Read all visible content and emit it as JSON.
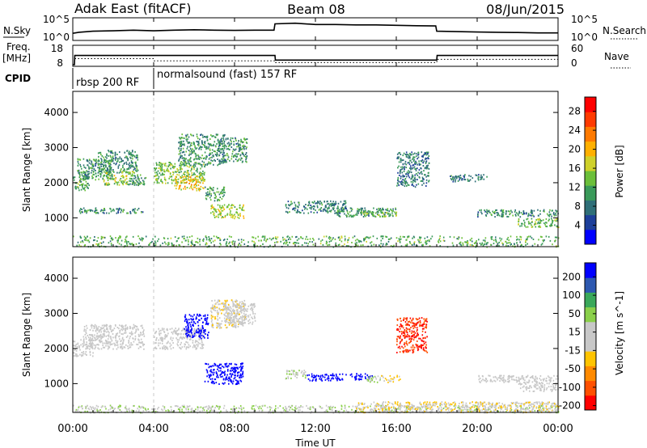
{
  "header": {
    "station": "Adak East (fitACF)",
    "beam": "Beam 08",
    "date": "08/Jun/2015"
  },
  "chart_data": [
    {
      "type": "line",
      "panel": "noise",
      "left_label": "N.Sky",
      "right_label": "N.Search",
      "left_ticks": [
        "10^5",
        "10^0"
      ],
      "right_ticks": [
        "10^5",
        "10^0"
      ],
      "x_range_hours": [
        0,
        24
      ],
      "series": [
        {
          "values": [
            {
              "x": 0.0,
              "y": 0.3
            },
            {
              "x": 0.3,
              "y": 0.35
            },
            {
              "x": 1.0,
              "y": 0.4
            },
            {
              "x": 2.0,
              "y": 0.42
            },
            {
              "x": 3.0,
              "y": 0.45
            },
            {
              "x": 4.0,
              "y": 0.42
            },
            {
              "x": 5.0,
              "y": 0.45
            },
            {
              "x": 6.0,
              "y": 0.47
            },
            {
              "x": 7.0,
              "y": 0.45
            },
            {
              "x": 8.0,
              "y": 0.44
            },
            {
              "x": 9.0,
              "y": 0.45
            },
            {
              "x": 9.95,
              "y": 0.45
            },
            {
              "x": 10.0,
              "y": 0.75
            },
            {
              "x": 11.0,
              "y": 0.78
            },
            {
              "x": 12.0,
              "y": 0.72
            },
            {
              "x": 13.0,
              "y": 0.72
            },
            {
              "x": 14.0,
              "y": 0.7
            },
            {
              "x": 15.0,
              "y": 0.7
            },
            {
              "x": 16.0,
              "y": 0.68
            },
            {
              "x": 17.0,
              "y": 0.66
            },
            {
              "x": 17.95,
              "y": 0.65
            },
            {
              "x": 18.0,
              "y": 0.4
            },
            {
              "x": 19.0,
              "y": 0.38
            },
            {
              "x": 20.0,
              "y": 0.36
            },
            {
              "x": 21.0,
              "y": 0.35
            },
            {
              "x": 22.0,
              "y": 0.34
            },
            {
              "x": 23.0,
              "y": 0.32
            },
            {
              "x": 24.0,
              "y": 0.32
            }
          ]
        }
      ]
    },
    {
      "type": "line",
      "panel": "frequency",
      "left_label": "Freq.",
      "left_unit": "[MHz]",
      "right_label": "Nave",
      "left_ticks": [
        "18",
        "8"
      ],
      "right_ticks": [
        "60",
        "0"
      ],
      "x_range_hours": [
        0,
        24
      ],
      "series": [
        {
          "style": "solid",
          "values": [
            {
              "x": 0.0,
              "y": 8
            },
            {
              "x": 0.08,
              "y": 8
            },
            {
              "x": 0.1,
              "y": 13.2
            },
            {
              "x": 10.0,
              "y": 13.2
            },
            {
              "x": 10.02,
              "y": 10.6
            },
            {
              "x": 18.0,
              "y": 10.6
            },
            {
              "x": 18.02,
              "y": 13.2
            },
            {
              "x": 24.0,
              "y": 13.2
            }
          ]
        },
        {
          "style": "dotted",
          "values": [
            {
              "x": 0.1,
              "y": 11.4
            },
            {
              "x": 4.0,
              "y": 11.4
            },
            {
              "x": 4.02,
              "y": 10.2
            },
            {
              "x": 10.0,
              "y": 10.2
            },
            {
              "x": 10.02,
              "y": 9.2
            },
            {
              "x": 18.0,
              "y": 9.2
            },
            {
              "x": 18.02,
              "y": 11.0
            },
            {
              "x": 24.0,
              "y": 11.0
            }
          ]
        }
      ]
    },
    {
      "type": "table",
      "panel": "cpid",
      "label": "CPID",
      "segments": [
        {
          "start_hour": 0,
          "label": "rbsp 200 RF"
        },
        {
          "start_hour": 4,
          "label": "normalsound (fast) 157 RF"
        }
      ]
    },
    {
      "type": "heatmap",
      "panel": "power",
      "ylabel": "Slant Range [km]",
      "yticks": [
        1000,
        2000,
        3000,
        4000
      ],
      "ylim": [
        180,
        4600
      ],
      "xlim": [
        0,
        24
      ],
      "colorbar_label": "Power [dB]",
      "colorbar_ticks": [
        4,
        8,
        12,
        16,
        20,
        24,
        28
      ],
      "colorbar_range": [
        0,
        31
      ],
      "palette": [
        "#0000ff",
        "#1d3f9a",
        "#2f6f78",
        "#3a9a5a",
        "#6bbf3a",
        "#cfd12a",
        "#ffb000",
        "#ff7a00",
        "#ff3a00",
        "#ff0000"
      ],
      "regions": [
        {
          "t0": 0.0,
          "t1": 0.8,
          "r0": 1800,
          "r1": 2300,
          "v": 12
        },
        {
          "t0": 0.2,
          "t1": 2.0,
          "r0": 2100,
          "r1": 2700,
          "v": 10
        },
        {
          "t0": 1.2,
          "t1": 3.2,
          "r0": 2300,
          "r1": 2950,
          "v": 10
        },
        {
          "t0": 1.5,
          "t1": 3.0,
          "r0": 1950,
          "r1": 2350,
          "v": 15
        },
        {
          "t0": 2.8,
          "t1": 3.6,
          "r0": 1950,
          "r1": 2250,
          "v": 11
        },
        {
          "t0": 0.3,
          "t1": 3.5,
          "r0": 1150,
          "r1": 1300,
          "v": 9
        },
        {
          "t0": 4.0,
          "t1": 6.5,
          "r0": 2000,
          "r1": 2600,
          "v": 14
        },
        {
          "t0": 5.0,
          "t1": 6.5,
          "r0": 1800,
          "r1": 2200,
          "v": 19
        },
        {
          "t0": 5.2,
          "t1": 7.5,
          "r0": 2500,
          "r1": 3400,
          "v": 10
        },
        {
          "t0": 7.2,
          "t1": 8.6,
          "r0": 2600,
          "r1": 3300,
          "v": 10
        },
        {
          "t0": 6.8,
          "t1": 8.5,
          "r0": 1000,
          "r1": 1400,
          "v": 16
        },
        {
          "t0": 6.5,
          "t1": 7.5,
          "r0": 1500,
          "r1": 1900,
          "v": 11
        },
        {
          "t0": 10.5,
          "t1": 13.5,
          "r0": 1150,
          "r1": 1500,
          "v": 9
        },
        {
          "t0": 13.0,
          "t1": 16.0,
          "r0": 1050,
          "r1": 1300,
          "v": 10
        },
        {
          "t0": 14.0,
          "t1": 16.0,
          "r0": 1050,
          "r1": 1200,
          "v": 13
        },
        {
          "t0": 16.0,
          "t1": 17.6,
          "r0": 1900,
          "r1": 2900,
          "v": 8
        },
        {
          "t0": 18.6,
          "t1": 20.5,
          "r0": 2050,
          "r1": 2250,
          "v": 9
        },
        {
          "t0": 20.0,
          "t1": 24.0,
          "r0": 1050,
          "r1": 1250,
          "v": 9
        },
        {
          "t0": 22.0,
          "t1": 24.0,
          "r0": 750,
          "r1": 1000,
          "v": 13
        },
        {
          "t0": 0.0,
          "t1": 24.0,
          "r0": 190,
          "r1": 500,
          "v": 12
        }
      ]
    },
    {
      "type": "heatmap",
      "panel": "velocity",
      "ylabel": "Slant Range [km]",
      "yticks": [
        1000,
        2000,
        3000,
        4000
      ],
      "ylim": [
        180,
        4600
      ],
      "xlim": [
        0,
        24
      ],
      "colorbar_label": "Velocity [m s^-1]",
      "colorbar_ticks": [
        200,
        100,
        50,
        15,
        -15,
        -50,
        -100,
        -200
      ],
      "colorbar_range": [
        -250,
        250
      ],
      "palette": [
        "#ff0000",
        "#ff5000",
        "#ff8a00",
        "#ffc400",
        "#c8c8c8",
        "#c8c8c8",
        "#8ad04a",
        "#3aa85a",
        "#2d58b0",
        "#0000ff"
      ],
      "regions": [
        {
          "t0": 0.0,
          "t1": 1.0,
          "r0": 1800,
          "r1": 2300,
          "v": 0
        },
        {
          "t0": 0.5,
          "t1": 3.5,
          "r0": 2000,
          "r1": 2700,
          "v": 0
        },
        {
          "t0": 4.0,
          "t1": 6.5,
          "r0": 2000,
          "r1": 2600,
          "v": 0
        },
        {
          "t0": 5.5,
          "t1": 6.7,
          "r0": 2300,
          "r1": 3000,
          "v": 230
        },
        {
          "t0": 6.5,
          "t1": 8.4,
          "r0": 1000,
          "r1": 1600,
          "v": 230
        },
        {
          "t0": 6.8,
          "t1": 8.5,
          "r0": 2600,
          "r1": 3400,
          "v": -40
        },
        {
          "t0": 7.5,
          "t1": 9.0,
          "r0": 2700,
          "r1": 3300,
          "v": -20
        },
        {
          "t0": 10.5,
          "t1": 11.5,
          "r0": 1150,
          "r1": 1400,
          "v": 30
        },
        {
          "t0": 11.5,
          "t1": 14.8,
          "r0": 1100,
          "r1": 1300,
          "v": 230
        },
        {
          "t0": 14.5,
          "t1": 15.3,
          "r0": 1050,
          "r1": 1250,
          "v": 60
        },
        {
          "t0": 15.2,
          "t1": 16.2,
          "r0": 1050,
          "r1": 1250,
          "v": -60
        },
        {
          "t0": 16.0,
          "t1": 17.5,
          "r0": 1900,
          "r1": 2900,
          "v": -200
        },
        {
          "t0": 20.0,
          "t1": 24.0,
          "r0": 1050,
          "r1": 1250,
          "v": 0
        },
        {
          "t0": 22.0,
          "t1": 24.0,
          "r0": 800,
          "r1": 1050,
          "v": 0
        },
        {
          "t0": 0.0,
          "t1": 24.0,
          "r0": 190,
          "r1": 400,
          "v": 40
        },
        {
          "t0": 14.0,
          "t1": 24.0,
          "r0": 190,
          "r1": 500,
          "v": -40
        }
      ]
    }
  ],
  "axes": {
    "x_tick_labels": [
      "00:00",
      "04:00",
      "08:00",
      "12:00",
      "16:00",
      "20:00",
      "00:00"
    ],
    "x_label": "Time UT"
  }
}
